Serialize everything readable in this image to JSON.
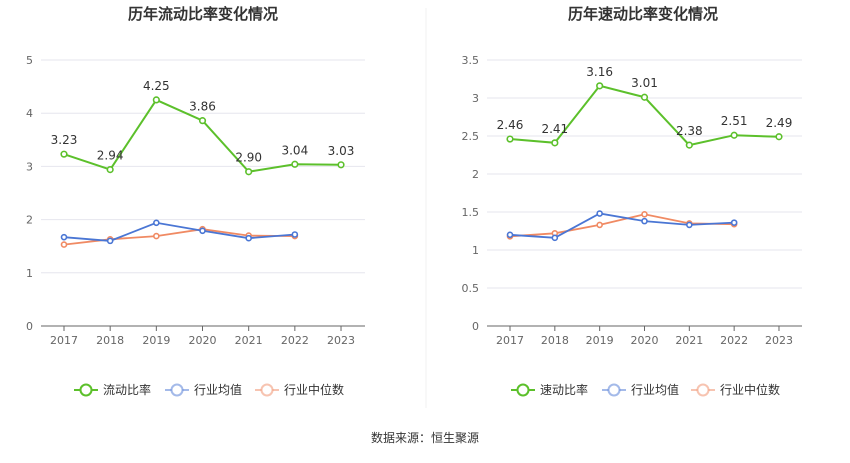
{
  "source": "数据来源：恒生聚源",
  "colors": {
    "main": "#5cc02b",
    "avg": "#4a76d4",
    "median": "#f08a63",
    "grid": "#e6e6ee",
    "axis": "#666666"
  },
  "chart_data": [
    {
      "type": "line",
      "title": "历年流动比率变化情况",
      "categories": [
        "2017",
        "2018",
        "2019",
        "2020",
        "2021",
        "2022",
        "2023"
      ],
      "ylim": [
        0,
        5
      ],
      "yticks": [
        "0",
        "1",
        "2",
        "3",
        "4",
        "5"
      ],
      "grid": true,
      "legend_position": "bottom",
      "series": [
        {
          "name": "流动比率",
          "values": [
            3.23,
            2.94,
            4.25,
            3.86,
            2.9,
            3.04,
            3.03
          ],
          "labels": [
            "3.23",
            "2.94",
            "4.25",
            "3.86",
            "2.90",
            "3.04",
            "3.03"
          ]
        },
        {
          "name": "行业均值",
          "values": [
            1.67,
            1.6,
            1.94,
            1.79,
            1.65,
            1.72,
            null
          ]
        },
        {
          "name": "行业中位数",
          "values": [
            1.53,
            1.63,
            1.69,
            1.82,
            1.7,
            1.69,
            null
          ]
        }
      ]
    },
    {
      "type": "line",
      "title": "历年速动比率变化情况",
      "categories": [
        "2017",
        "2018",
        "2019",
        "2020",
        "2021",
        "2022",
        "2023"
      ],
      "ylim": [
        0,
        3.5
      ],
      "yticks": [
        "0",
        "0.5",
        "1",
        "1.5",
        "2",
        "2.5",
        "3",
        "3.5"
      ],
      "grid": true,
      "legend_position": "bottom",
      "series": [
        {
          "name": "速动比率",
          "values": [
            2.46,
            2.41,
            3.16,
            3.01,
            2.38,
            2.51,
            2.49
          ],
          "labels": [
            "2.46",
            "2.41",
            "3.16",
            "3.01",
            "2.38",
            "2.51",
            "2.49"
          ]
        },
        {
          "name": "行业均值",
          "values": [
            1.2,
            1.16,
            1.48,
            1.38,
            1.33,
            1.36,
            null
          ]
        },
        {
          "name": "行业中位数",
          "values": [
            1.18,
            1.22,
            1.33,
            1.47,
            1.35,
            1.34,
            null
          ]
        }
      ]
    }
  ]
}
